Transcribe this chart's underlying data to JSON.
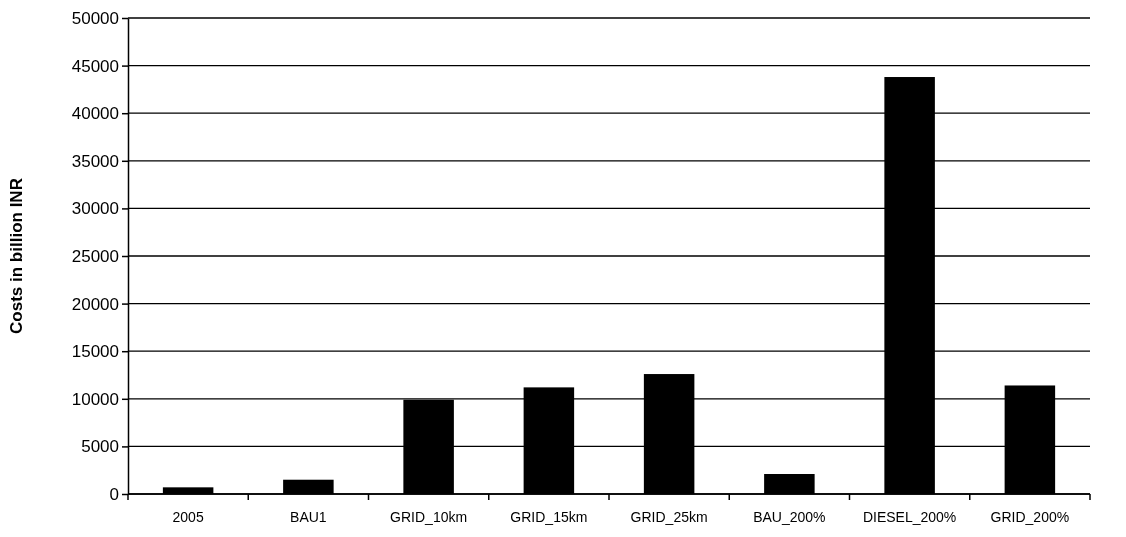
{
  "chart_data": {
    "type": "bar",
    "ylabel": "Costs in billion INR",
    "categories": [
      "2005",
      "BAU1",
      "GRID_10km",
      "GRID_15km",
      "GRID_25km",
      "BAU_200%",
      "DIESEL_200%",
      "GRID_200%"
    ],
    "values": [
      700,
      1500,
      9900,
      11200,
      12600,
      2100,
      43800,
      11400
    ],
    "color": "#000000",
    "ylim": [
      0,
      50000
    ],
    "yticks": [
      0,
      5000,
      10000,
      15000,
      20000,
      25000,
      30000,
      35000,
      40000,
      45000,
      50000
    ],
    "grid": "y"
  }
}
